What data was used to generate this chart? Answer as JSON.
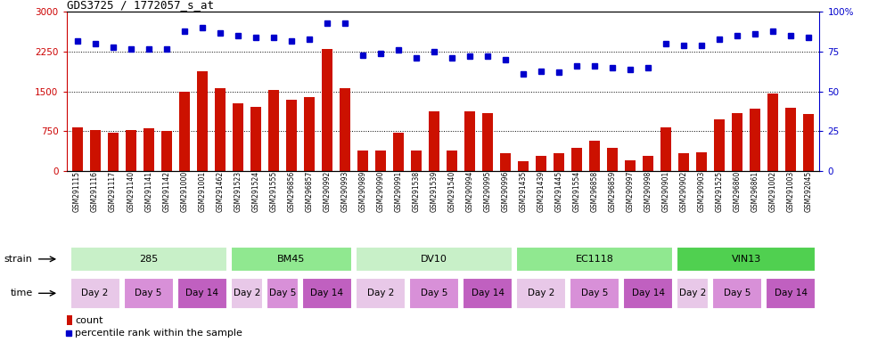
{
  "title": "GDS3725 / 1772057_s_at",
  "samples": [
    "GSM291115",
    "GSM291116",
    "GSM291117",
    "GSM291140",
    "GSM291141",
    "GSM291142",
    "GSM291000",
    "GSM291001",
    "GSM291462",
    "GSM291523",
    "GSM291524",
    "GSM291555",
    "GSM296856",
    "GSM296857",
    "GSM290992",
    "GSM290993",
    "GSM290989",
    "GSM290990",
    "GSM290991",
    "GSM291538",
    "GSM291539",
    "GSM291540",
    "GSM290994",
    "GSM290995",
    "GSM290996",
    "GSM291435",
    "GSM291439",
    "GSM291445",
    "GSM291554",
    "GSM296858",
    "GSM296859",
    "GSM290997",
    "GSM290998",
    "GSM290901",
    "GSM290902",
    "GSM290903",
    "GSM291525",
    "GSM296860",
    "GSM296861",
    "GSM291002",
    "GSM291003",
    "GSM292045"
  ],
  "counts": [
    820,
    770,
    720,
    780,
    800,
    760,
    1490,
    1880,
    1560,
    1280,
    1210,
    1530,
    1350,
    1390,
    2300,
    1570,
    380,
    390,
    730,
    390,
    1120,
    390,
    1120,
    1100,
    340,
    180,
    290,
    340,
    430,
    570,
    440,
    200,
    290,
    830,
    330,
    350,
    980,
    1090,
    1180,
    1460,
    1200,
    1080
  ],
  "percentiles": [
    82,
    80,
    78,
    77,
    77,
    77,
    88,
    90,
    87,
    85,
    84,
    84,
    82,
    83,
    93,
    93,
    73,
    74,
    76,
    71,
    75,
    71,
    72,
    72,
    70,
    61,
    63,
    62,
    66,
    66,
    65,
    64,
    65,
    80,
    79,
    79,
    83,
    85,
    86,
    88,
    85,
    84
  ],
  "strains": [
    {
      "label": "285",
      "start": 0,
      "end": 8,
      "color": "#c8f0c8"
    },
    {
      "label": "BM45",
      "start": 9,
      "end": 15,
      "color": "#90e890"
    },
    {
      "label": "DV10",
      "start": 16,
      "end": 24,
      "color": "#c8f0c8"
    },
    {
      "label": "EC1118",
      "start": 25,
      "end": 33,
      "color": "#90e890"
    },
    {
      "label": "VIN13",
      "start": 34,
      "end": 41,
      "color": "#50d050"
    }
  ],
  "times": [
    {
      "label": "Day 2",
      "start": 0,
      "end": 2,
      "color": "#e8c8e8"
    },
    {
      "label": "Day 5",
      "start": 3,
      "end": 5,
      "color": "#d890d8"
    },
    {
      "label": "Day 14",
      "start": 6,
      "end": 8,
      "color": "#c060c0"
    },
    {
      "label": "Day 2",
      "start": 9,
      "end": 10,
      "color": "#e8c8e8"
    },
    {
      "label": "Day 5",
      "start": 11,
      "end": 12,
      "color": "#d890d8"
    },
    {
      "label": "Day 14",
      "start": 13,
      "end": 15,
      "color": "#c060c0"
    },
    {
      "label": "Day 2",
      "start": 16,
      "end": 18,
      "color": "#e8c8e8"
    },
    {
      "label": "Day 5",
      "start": 19,
      "end": 21,
      "color": "#d890d8"
    },
    {
      "label": "Day 14",
      "start": 22,
      "end": 24,
      "color": "#c060c0"
    },
    {
      "label": "Day 2",
      "start": 25,
      "end": 27,
      "color": "#e8c8e8"
    },
    {
      "label": "Day 5",
      "start": 28,
      "end": 30,
      "color": "#d890d8"
    },
    {
      "label": "Day 14",
      "start": 31,
      "end": 33,
      "color": "#c060c0"
    },
    {
      "label": "Day 2",
      "start": 34,
      "end": 35,
      "color": "#e8c8e8"
    },
    {
      "label": "Day 5",
      "start": 36,
      "end": 38,
      "color": "#d890d8"
    },
    {
      "label": "Day 14",
      "start": 39,
      "end": 41,
      "color": "#c060c0"
    }
  ],
  "bar_color": "#cc1100",
  "dot_color": "#0000cc",
  "ylim_left": [
    0,
    3000
  ],
  "ylim_right": [
    0,
    100
  ],
  "yticks_left": [
    0,
    750,
    1500,
    2250,
    3000
  ],
  "yticks_right": [
    0,
    25,
    50,
    75,
    100
  ],
  "grid_values": [
    750,
    1500,
    2250
  ],
  "title_fontsize": 9,
  "axis_color_left": "#cc0000",
  "axis_color_right": "#0000cc"
}
